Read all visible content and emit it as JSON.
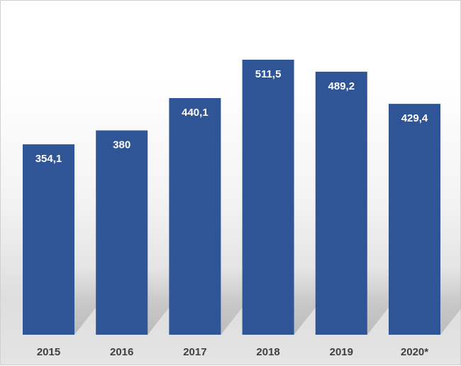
{
  "chart_data": {
    "type": "bar",
    "title": "",
    "xlabel": "",
    "ylabel": "",
    "categories": [
      "2015",
      "2016",
      "2017",
      "2018",
      "2019",
      "2020*"
    ],
    "values": [
      354.1,
      380,
      440.1,
      511.5,
      489.2,
      429.4
    ],
    "value_labels": [
      "354,1",
      "380",
      "440,1",
      "511,5",
      "489,2",
      "429,4"
    ],
    "ylim": [
      0,
      540
    ],
    "grid": false,
    "bar_color": "#2f5597",
    "label_color": "#ffffff",
    "tick_color": "#404040"
  }
}
